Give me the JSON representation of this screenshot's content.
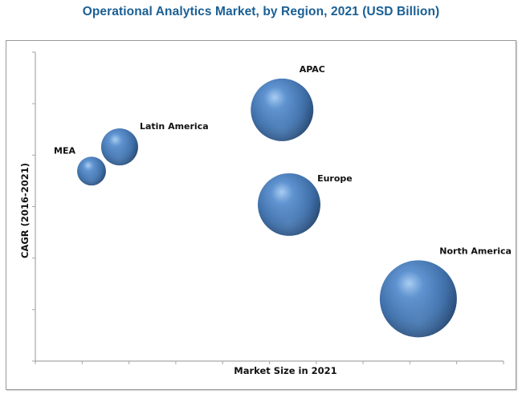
{
  "chart_data": {
    "type": "bubble",
    "title": "Operational Analytics Market, by Region, 2021 (USD Billion)",
    "xlabel": "Market Size in 2021",
    "ylabel": "CAGR (2016-2021)",
    "xlim": [
      0,
      10
    ],
    "ylim": [
      0,
      6
    ],
    "x_ticks": 10,
    "y_ticks": 6,
    "tick_labels_shown": false,
    "grid": false,
    "legend": "none",
    "bubble_color": "#4a7ebb",
    "series": [
      {
        "name": "MEA",
        "x": 1.2,
        "y": 3.69,
        "size": 0.14,
        "label_position": "top-left"
      },
      {
        "name": "Latin America",
        "x": 1.8,
        "y": 4.16,
        "size": 0.23,
        "label_position": "top-right"
      },
      {
        "name": "APAC",
        "x": 5.27,
        "y": 4.88,
        "size": 0.66,
        "label_position": "top-right"
      },
      {
        "name": "Europe",
        "x": 5.42,
        "y": 3.04,
        "size": 0.66,
        "label_position": "top-right"
      },
      {
        "name": "North America",
        "x": 8.18,
        "y": 1.21,
        "size": 1.0,
        "label_position": "top-right"
      }
    ]
  }
}
